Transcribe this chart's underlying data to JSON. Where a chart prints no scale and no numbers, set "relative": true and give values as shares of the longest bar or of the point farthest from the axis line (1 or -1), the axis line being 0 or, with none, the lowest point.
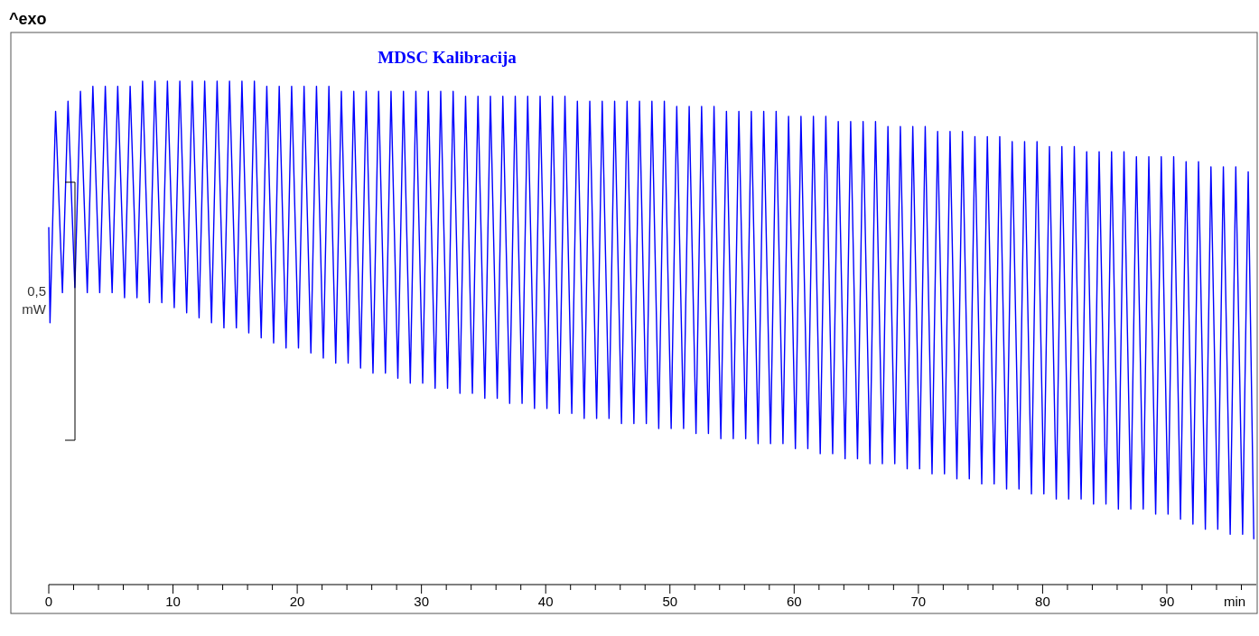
{
  "chart_data": {
    "type": "line",
    "title": "MDSC Kalibracija",
    "xlabel": "min",
    "relative": true,
    "annotations": [
      "^exo",
      "0,5 mW"
    ],
    "xlim": [
      0,
      97.2
    ],
    "xticks": [
      0,
      {
        "value": 2,
        "label": null
      },
      {
        "value": 4,
        "label": null
      },
      {
        "value": 6,
        "label": null
      },
      {
        "value": 8,
        "label": null
      },
      10,
      {
        "value": 12,
        "label": null
      },
      {
        "value": 14,
        "label": null
      },
      {
        "value": 16,
        "label": null
      },
      {
        "value": 18,
        "label": null
      },
      20,
      {
        "value": 22,
        "label": null
      },
      {
        "value": 24,
        "label": null
      },
      {
        "value": 26,
        "label": null
      },
      {
        "value": 28,
        "label": null
      },
      30,
      {
        "value": 32,
        "label": null
      },
      {
        "value": 34,
        "label": null
      },
      {
        "value": 36,
        "label": null
      },
      {
        "value": 38,
        "label": null
      },
      40,
      {
        "value": 42,
        "label": null
      },
      {
        "value": 44,
        "label": null
      },
      {
        "value": 46,
        "label": null
      },
      {
        "value": 48,
        "label": null
      },
      50,
      {
        "value": 52,
        "label": null
      },
      {
        "value": 54,
        "label": null
      },
      {
        "value": 56,
        "label": null
      },
      {
        "value": 58,
        "label": null
      },
      60,
      {
        "value": 62,
        "label": null
      },
      {
        "value": 64,
        "label": null
      },
      {
        "value": 66,
        "label": null
      },
      {
        "value": 68,
        "label": null
      },
      70,
      {
        "value": 72,
        "label": null
      },
      {
        "value": 74,
        "label": null
      },
      {
        "value": 76,
        "label": null
      },
      {
        "value": 78,
        "label": null
      },
      80,
      {
        "value": 82,
        "label": null
      },
      {
        "value": 84,
        "label": null
      },
      {
        "value": 86,
        "label": null
      },
      {
        "value": 88,
        "label": null
      },
      90,
      {
        "value": 92,
        "label": null
      },
      {
        "value": 94,
        "label": null
      },
      {
        "value": 96,
        "label": null
      }
    ],
    "grid": false,
    "series": [
      {
        "color": "#0000ff",
        "x": [
          0,
          0.1,
          0.55,
          1.1,
          1.55,
          2.1,
          2.55,
          3.1,
          3.55,
          4.1,
          4.55,
          5.1,
          5.55,
          6.1,
          6.55,
          7.1,
          7.55,
          8.1,
          8.55,
          9.1,
          9.55,
          10.1,
          10.55,
          11.1,
          11.55,
          12.1,
          12.55,
          13.1,
          13.55,
          14.1,
          14.55,
          15.1,
          15.55,
          16.1,
          16.55,
          17.1,
          17.55,
          18.1,
          18.55,
          19.1,
          19.55,
          20.1,
          20.55,
          21.1,
          21.55,
          22.1,
          22.55,
          23.1,
          23.55,
          24.1,
          24.55,
          25.1,
          25.55,
          26.1,
          26.55,
          27.1,
          27.55,
          28.1,
          28.55,
          29.1,
          29.55,
          30.1,
          30.55,
          31.1,
          31.55,
          32.1,
          32.55,
          33.1,
          33.55,
          34.1,
          34.55,
          35.1,
          35.55,
          36.1,
          36.55,
          37.1,
          37.55,
          38.1,
          38.55,
          39.1,
          39.55,
          40.1,
          40.55,
          41.1,
          41.55,
          42.1,
          42.55,
          43.1,
          43.55,
          44.1,
          44.55,
          45.1,
          45.55,
          46.1,
          46.55,
          47.1,
          47.55,
          48.1,
          48.55,
          49.1,
          49.55,
          50.1,
          50.55,
          51.1,
          51.55,
          52.1,
          52.55,
          53.1,
          53.55,
          54.1,
          54.55,
          55.1,
          55.55,
          56.1,
          56.55,
          57.1,
          57.55,
          58.1,
          58.55,
          59.1,
          59.55,
          60.1,
          60.55,
          61.1,
          61.55,
          62.1,
          62.55,
          63.1,
          63.55,
          64.1,
          64.55,
          65.1,
          65.55,
          66.1,
          66.55,
          67.1,
          67.55,
          68.1,
          68.55,
          69.1,
          69.55,
          70.1,
          70.55,
          71.1,
          71.55,
          72.1,
          72.55,
          73.1,
          73.55,
          74.1,
          74.55,
          75.1,
          75.55,
          76.1,
          76.55,
          77.1,
          77.55,
          78.1,
          78.55,
          79.1,
          79.55,
          80.1,
          80.55,
          81.1,
          81.55,
          82.1,
          82.55,
          83.1,
          83.55,
          84.1,
          84.55,
          85.1,
          85.55,
          86.1,
          86.55,
          87.1,
          87.55,
          88.1,
          88.55,
          89.1,
          89.55,
          90.1,
          90.55,
          91.1,
          91.55,
          92.1,
          92.55,
          93.1,
          93.55,
          94.1,
          94.55,
          95.1,
          95.55,
          96.1,
          96.55,
          97.0
        ],
        "values": [
          0.71,
          0.52,
          0.94,
          0.58,
          0.96,
          0.59,
          0.98,
          0.58,
          0.99,
          0.58,
          0.99,
          0.58,
          0.99,
          0.57,
          0.99,
          0.57,
          1,
          0.56,
          1,
          0.56,
          1,
          0.55,
          1,
          0.54,
          1,
          0.53,
          1,
          0.52,
          1,
          0.51,
          1,
          0.51,
          1,
          0.5,
          1,
          0.49,
          0.99,
          0.48,
          0.99,
          0.47,
          0.99,
          0.47,
          0.99,
          0.46,
          0.99,
          0.45,
          0.99,
          0.44,
          0.98,
          0.44,
          0.98,
          0.43,
          0.98,
          0.42,
          0.98,
          0.42,
          0.98,
          0.41,
          0.98,
          0.4,
          0.98,
          0.4,
          0.98,
          0.39,
          0.98,
          0.39,
          0.98,
          0.38,
          0.97,
          0.38,
          0.97,
          0.37,
          0.97,
          0.37,
          0.97,
          0.36,
          0.97,
          0.36,
          0.97,
          0.35,
          0.97,
          0.35,
          0.97,
          0.34,
          0.97,
          0.34,
          0.96,
          0.33,
          0.96,
          0.33,
          0.96,
          0.33,
          0.96,
          0.32,
          0.96,
          0.32,
          0.96,
          0.32,
          0.96,
          0.31,
          0.96,
          0.31,
          0.95,
          0.31,
          0.95,
          0.3,
          0.95,
          0.3,
          0.95,
          0.29,
          0.94,
          0.29,
          0.94,
          0.29,
          0.94,
          0.28,
          0.94,
          0.28,
          0.94,
          0.28,
          0.93,
          0.27,
          0.93,
          0.27,
          0.93,
          0.26,
          0.93,
          0.26,
          0.92,
          0.25,
          0.92,
          0.25,
          0.92,
          0.24,
          0.92,
          0.24,
          0.91,
          0.24,
          0.91,
          0.23,
          0.91,
          0.23,
          0.91,
          0.22,
          0.9,
          0.22,
          0.9,
          0.21,
          0.9,
          0.21,
          0.89,
          0.2,
          0.89,
          0.2,
          0.89,
          0.19,
          0.88,
          0.19,
          0.88,
          0.18,
          0.88,
          0.18,
          0.87,
          0.17,
          0.87,
          0.17,
          0.87,
          0.17,
          0.86,
          0.16,
          0.86,
          0.16,
          0.86,
          0.15,
          0.86,
          0.15,
          0.85,
          0.15,
          0.85,
          0.14,
          0.85,
          0.14,
          0.85,
          0.13,
          0.84,
          0.12,
          0.84,
          0.11,
          0.83,
          0.11,
          0.83,
          0.1,
          0.83,
          0.1,
          0.82,
          0.09
        ]
      }
    ]
  }
}
